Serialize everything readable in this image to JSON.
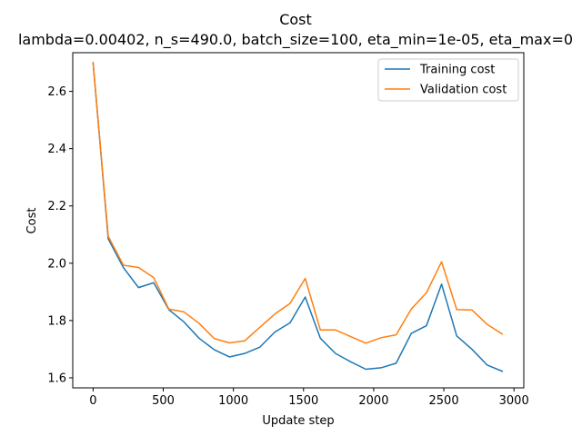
{
  "chart_data": {
    "type": "line",
    "title": "Cost",
    "subtitle": "lambda=0.00402, n_s=490.0, batch_size=100, eta_min=1e-05, eta_max=0",
    "xlabel": "Update step",
    "ylabel": "Cost",
    "xlim": [
      -145,
      3070
    ],
    "ylim": [
      1.565,
      2.735
    ],
    "x_ticks": [
      0,
      500,
      1000,
      1500,
      2000,
      2500,
      3000
    ],
    "x_tick_labels": [
      "0",
      "500",
      "1000",
      "1500",
      "2000",
      "2500",
      "3000"
    ],
    "y_ticks": [
      1.6,
      1.8,
      2.0,
      2.2,
      2.4,
      2.6
    ],
    "y_tick_labels": [
      "1.6",
      "1.8",
      "2.0",
      "2.2",
      "2.4",
      "2.6"
    ],
    "grid": false,
    "legend_position": "top-right",
    "x": [
      0,
      108,
      216,
      324,
      432,
      540,
      648,
      756,
      864,
      972,
      1080,
      1188,
      1296,
      1404,
      1512,
      1620,
      1728,
      1836,
      1944,
      2052,
      2160,
      2268,
      2376,
      2484,
      2592,
      2700,
      2808,
      2916
    ],
    "series": [
      {
        "name": "Training cost",
        "color": "#1f77b4",
        "values": [
          2.7,
          2.085,
          1.985,
          1.915,
          1.932,
          1.838,
          1.795,
          1.738,
          1.698,
          1.673,
          1.685,
          1.707,
          1.76,
          1.792,
          1.882,
          1.738,
          1.685,
          1.656,
          1.63,
          1.635,
          1.651,
          1.755,
          1.782,
          1.927,
          1.746,
          1.7,
          1.645,
          1.623
        ]
      },
      {
        "name": "Validation cost",
        "color": "#ff7f0e",
        "values": [
          2.7,
          2.094,
          1.993,
          1.985,
          1.95,
          1.84,
          1.83,
          1.79,
          1.737,
          1.722,
          1.729,
          1.776,
          1.823,
          1.86,
          1.947,
          1.767,
          1.767,
          1.744,
          1.721,
          1.74,
          1.75,
          1.84,
          1.897,
          2.005,
          1.838,
          1.837,
          1.787,
          1.753
        ]
      }
    ]
  }
}
